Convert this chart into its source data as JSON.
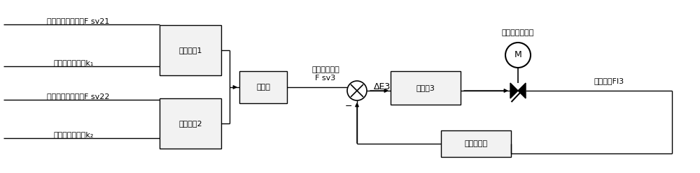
{
  "bg_color": "#ffffff",
  "line_color": "#000000",
  "labels": {
    "fsv21": "第一煎气目标流量F sv21",
    "k1": "空气煎气比系数k₁",
    "fsv22": "第二煎气目标流量F sv22",
    "k2": "空气煎气比系数k₂",
    "ratio1": "比例环冂1",
    "ratio2": "比例环冂2",
    "adder": "加法器",
    "air_target_line1": "空气目标流量",
    "air_target_line2": "F sv3",
    "delta_e3": "ΔE3",
    "regulator3": "调节器3",
    "air_valve": "空气流量调节阀",
    "M": "M",
    "actual_fi3": "实际流量FI3",
    "air_meter": "空气流量计",
    "minus": "−"
  }
}
